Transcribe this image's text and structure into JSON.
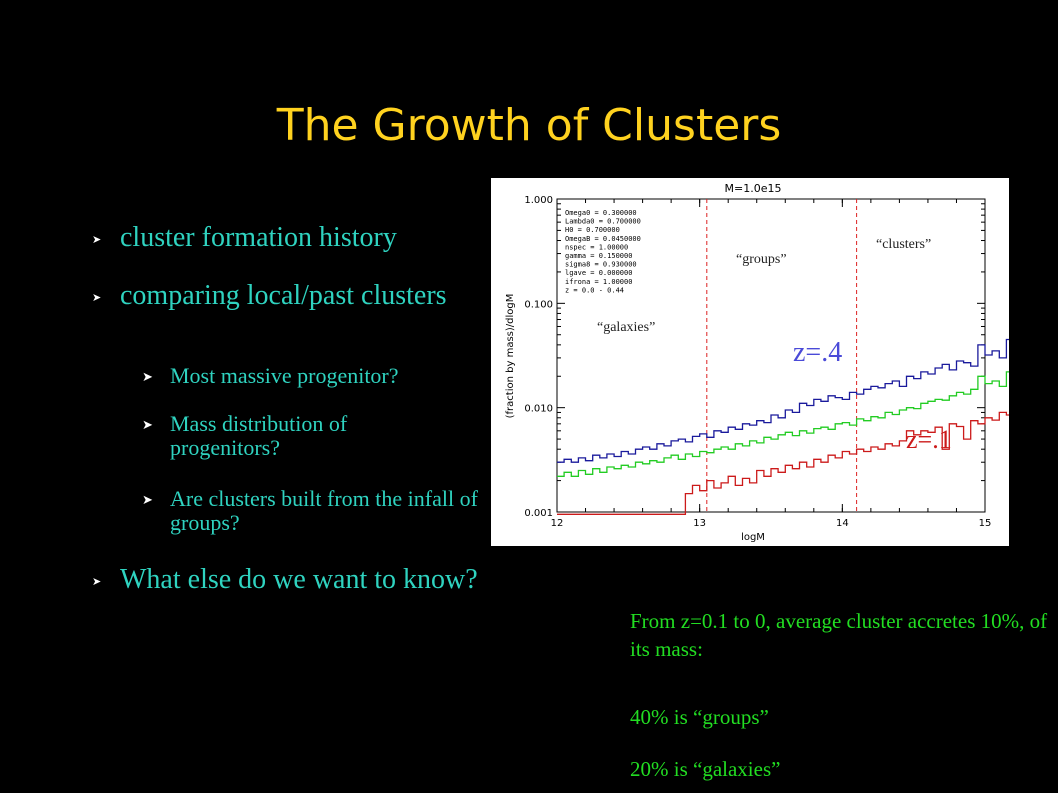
{
  "slide": {
    "title": "The Growth of Clusters",
    "bullets": [
      {
        "text": "cluster formation history"
      },
      {
        "text": "comparing local/past clusters"
      },
      {
        "text": "Most massive progenitor?"
      },
      {
        "text": "Mass distribution of progenitors?"
      },
      {
        "text": "Are clusters built from the infall of groups?"
      },
      {
        "text": "What else do we want to know?"
      }
    ],
    "notes": [
      "From z=0.1 to 0, average cluster accretes  10%, of its mass:",
      "40% is “groups”",
      "20% is “galaxies”"
    ]
  },
  "chart_data": {
    "type": "line",
    "title": "M=1.0e15",
    "xlabel": "logM",
    "ylabel": "(fraction by mass)/dlogM",
    "xlim": [
      12,
      15
    ],
    "ylim": [
      0.001,
      1.0
    ],
    "yscale": "log",
    "xticks": [
      "12",
      "13",
      "14",
      "15"
    ],
    "yticks": [
      "0.001",
      "0.010",
      "0.100",
      "1.000"
    ],
    "params": [
      "Omega0 =     0.300000",
      "Lambda0 =    0.700000",
      "H0 =         0.700000",
      "OmegaB =     0.0450000",
      "nspec =      1.00000",
      "gamma =      0.150000",
      "sigma8 =     0.930000",
      "lgave =      0.000000",
      "ifrona =     1.00000",
      "z = 0.0 - 0.44"
    ],
    "annotations": {
      "galaxies": "“galaxies”",
      "groups": "“groups”",
      "clusters": "“clusters”",
      "z_high": "z=.4",
      "z_low": "z=.1"
    },
    "dividers": [
      13.05,
      14.1
    ],
    "series": [
      {
        "color": "#1a1a9c",
        "x0": 12.0,
        "dx": 0.05,
        "values": [
          0.003,
          0.0032,
          0.003,
          0.0033,
          0.0031,
          0.0035,
          0.0033,
          0.0036,
          0.0034,
          0.0038,
          0.0036,
          0.004,
          0.0042,
          0.004,
          0.0045,
          0.0043,
          0.0048,
          0.005,
          0.0047,
          0.0053,
          0.0056,
          0.0052,
          0.006,
          0.0058,
          0.0065,
          0.0062,
          0.007,
          0.0068,
          0.0075,
          0.0072,
          0.0085,
          0.008,
          0.0095,
          0.009,
          0.011,
          0.0105,
          0.012,
          0.0115,
          0.013,
          0.0125,
          0.012,
          0.014,
          0.0135,
          0.015,
          0.016,
          0.0155,
          0.017,
          0.018,
          0.016,
          0.02,
          0.019,
          0.022,
          0.021,
          0.024,
          0.026,
          0.023,
          0.028,
          0.027,
          0.025,
          0.04,
          0.032,
          0.035,
          0.03,
          0.045,
          0.042,
          0.05,
          0.048,
          0.055,
          0.045,
          0.065,
          0.06,
          0.07,
          0.066,
          0.072,
          0.09,
          0.08,
          0.085,
          0.11,
          0.1,
          0.12,
          0.13,
          0.28,
          0.22,
          0.3,
          0.15,
          0.12,
          0.12,
          0.0012,
          0.0012,
          0.0012
        ]
      },
      {
        "color": "#22cc22",
        "x0": 12.0,
        "dx": 0.05,
        "values": [
          0.0022,
          0.0024,
          0.0022,
          0.0025,
          0.0023,
          0.0026,
          0.0024,
          0.0027,
          0.0026,
          0.0028,
          0.0027,
          0.003,
          0.0029,
          0.0031,
          0.003,
          0.0033,
          0.0035,
          0.0032,
          0.0036,
          0.0034,
          0.0038,
          0.0037,
          0.004,
          0.0042,
          0.004,
          0.0045,
          0.0043,
          0.0048,
          0.0046,
          0.0052,
          0.005,
          0.0055,
          0.0058,
          0.0054,
          0.006,
          0.0057,
          0.0063,
          0.0065,
          0.0062,
          0.007,
          0.0072,
          0.0068,
          0.0078,
          0.0075,
          0.0082,
          0.008,
          0.009,
          0.0086,
          0.0095,
          0.01,
          0.0098,
          0.011,
          0.0115,
          0.012,
          0.0118,
          0.013,
          0.014,
          0.0135,
          0.015,
          0.02,
          0.017,
          0.018,
          0.016,
          0.022,
          0.024,
          0.023,
          0.028,
          0.026,
          0.03,
          0.035,
          0.033,
          0.04,
          0.037,
          0.045,
          0.043,
          0.055,
          0.05,
          0.06,
          0.08,
          0.1,
          0.13,
          0.12,
          0.16,
          0.22,
          0.5,
          0.28,
          0.3,
          0.0012,
          0.0012,
          0.0012
        ]
      },
      {
        "color": "#cc1a1a",
        "x0": 12.0,
        "dx": 0.05,
        "values": [
          0.00095,
          0.00095,
          0.00095,
          0.00095,
          0.00095,
          0.00095,
          0.00095,
          0.00095,
          0.00095,
          0.00095,
          0.00095,
          0.00095,
          0.00095,
          0.00095,
          0.00095,
          0.00095,
          0.00095,
          0.00095,
          0.0015,
          0.0018,
          0.0016,
          0.002,
          0.0017,
          0.0019,
          0.0022,
          0.0018,
          0.0021,
          0.0019,
          0.0025,
          0.0022,
          0.0026,
          0.0024,
          0.0028,
          0.0026,
          0.003,
          0.0027,
          0.0032,
          0.003,
          0.0035,
          0.0033,
          0.0038,
          0.0036,
          0.004,
          0.0038,
          0.0042,
          0.004,
          0.0045,
          0.0043,
          0.0048,
          0.006,
          0.0055,
          0.006,
          0.0058,
          0.0065,
          0.004,
          0.007,
          0.0066,
          0.005,
          0.0075,
          0.007,
          0.008,
          0.0076,
          0.009,
          0.0085,
          0.008,
          0.0065,
          0.012,
          0.011,
          0.013,
          0.011,
          0.022,
          0.013,
          0.016,
          0.015,
          0.02,
          0.03,
          0.026,
          0.04,
          0.035,
          0.05,
          0.06,
          0.08,
          0.1,
          0.14,
          0.3,
          0.5,
          0.9,
          0.0012,
          0.0012,
          0.0012
        ]
      }
    ]
  }
}
